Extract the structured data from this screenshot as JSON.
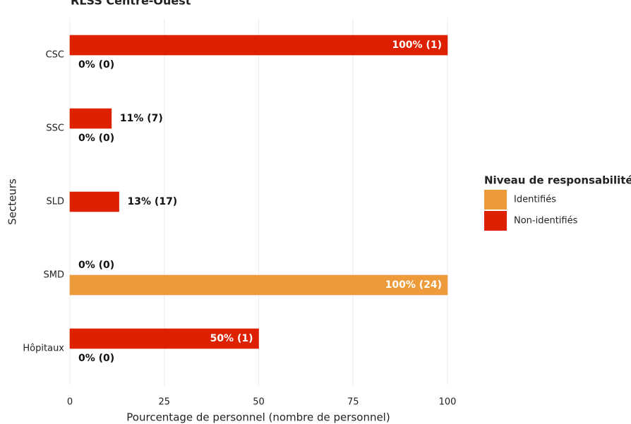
{
  "chart_data": {
    "type": "bar",
    "orientation": "horizontal",
    "title": "RLSS Centre-Ouest",
    "categories": [
      "CSC",
      "SSC",
      "SLD",
      "SMD",
      "Hôpitaux"
    ],
    "series": [
      {
        "name": "Identifiés",
        "color": "#ec9a3a",
        "values": [
          0,
          0,
          null,
          100,
          0
        ],
        "value_labels": [
          "0% (0)",
          "0% (0)",
          null,
          "100% (24)",
          "0% (0)"
        ]
      },
      {
        "name": "Non-identifiés",
        "color": "#dc2000",
        "values": [
          100,
          11,
          13,
          0,
          50
        ],
        "value_labels": [
          "100% (1)",
          "11% (7)",
          "13% (17)",
          "0% (0)",
          "50% (1)"
        ]
      }
    ],
    "xlim": [
      0,
      100
    ],
    "xticks": [
      0,
      25,
      50,
      75,
      100
    ],
    "grid": true,
    "x_label": "Pourcentage de personnel (nombre de personnel)",
    "y_label": "Secteurs",
    "legend_title": "Niveau de responsabilité",
    "legend": "right"
  }
}
